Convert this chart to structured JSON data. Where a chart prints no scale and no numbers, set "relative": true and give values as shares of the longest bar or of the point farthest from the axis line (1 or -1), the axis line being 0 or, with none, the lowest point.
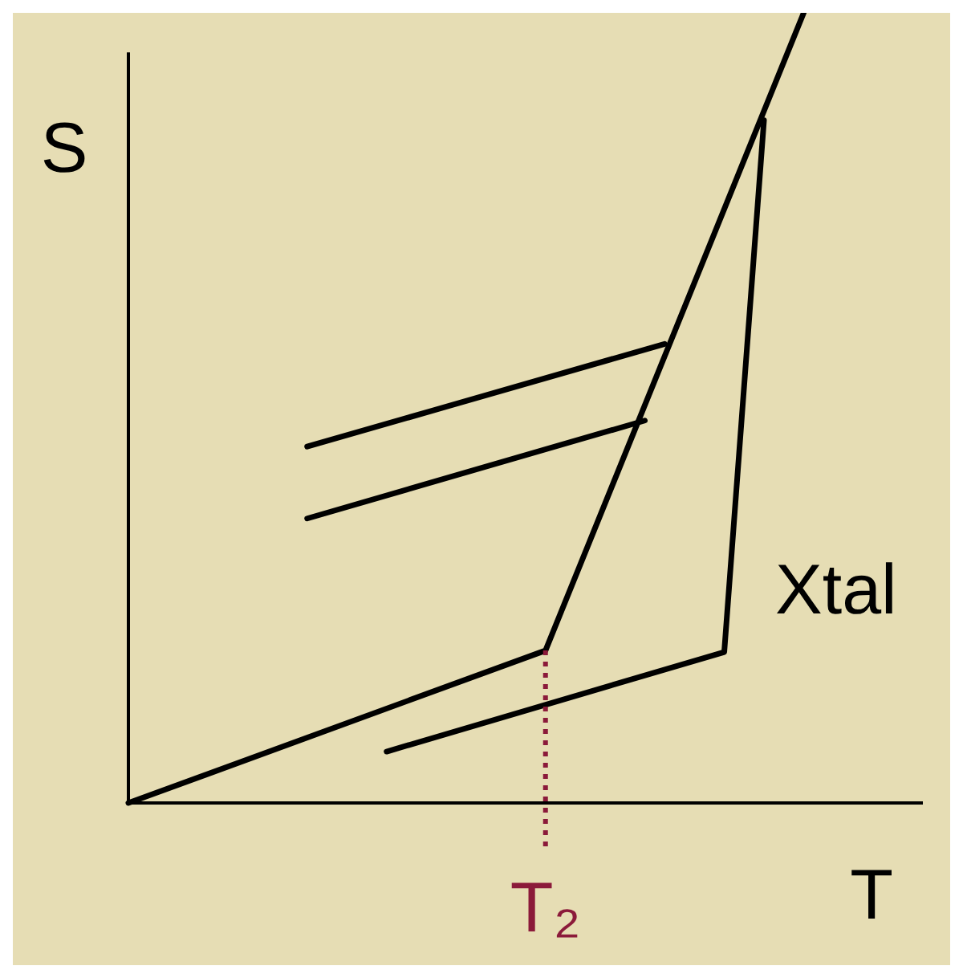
{
  "chart_data": {
    "type": "line",
    "relative": true,
    "xlabel": "T",
    "ylabel": "S",
    "annotations": [
      "Xtal",
      "T₂"
    ],
    "marker": "none",
    "categories": [
      null,
      null,
      null,
      null,
      null,
      null,
      null,
      null,
      null,
      null,
      null,
      null,
      null,
      null,
      null,
      null,
      null,
      null,
      null,
      null,
      null,
      null,
      null,
      null,
      null,
      null,
      null,
      null,
      null,
      null,
      null,
      null,
      null,
      null,
      null,
      null,
      null,
      null,
      null,
      null,
      null
    ],
    "series": [
      {
        "color": "#000000",
        "values": [
          0,
          null,
          null,
          null,
          null,
          null,
          null,
          null,
          null,
          null,
          null,
          null,
          null,
          null,
          null,
          null,
          null,
          null,
          null,
          null,
          null,
          0.193,
          null,
          null,
          null,
          null,
          null,
          null,
          null,
          null,
          null,
          null,
          null,
          null,
          1.0,
          null,
          null,
          null,
          null,
          null,
          null
        ]
      },
      {
        "color": "#000000",
        "values": [
          null,
          null,
          null,
          null,
          null,
          null,
          null,
          null,
          null,
          null,
          null,
          null,
          null,
          0.065,
          null,
          null,
          null,
          null,
          null,
          null,
          null,
          null,
          null,
          null,
          null,
          null,
          null,
          null,
          null,
          null,
          0.191,
          null,
          0.864,
          null,
          null,
          null,
          null,
          null,
          null,
          null,
          null
        ]
      },
      {
        "color": "#000000",
        "values": [
          null,
          null,
          null,
          null,
          null,
          null,
          null,
          null,
          null,
          0.451,
          null,
          null,
          null,
          null,
          null,
          null,
          null,
          null,
          null,
          null,
          null,
          null,
          null,
          null,
          null,
          null,
          null,
          0.581,
          null,
          null,
          null,
          null,
          null,
          null,
          null,
          null,
          null,
          null,
          null,
          null,
          null
        ]
      },
      {
        "color": "#000000",
        "values": [
          null,
          null,
          null,
          null,
          null,
          null,
          null,
          null,
          null,
          0.36,
          null,
          null,
          null,
          null,
          null,
          null,
          null,
          null,
          null,
          null,
          null,
          null,
          null,
          null,
          null,
          null,
          0.484,
          null,
          null,
          null,
          null,
          null,
          null,
          null,
          null,
          null,
          null,
          null,
          null,
          null,
          null
        ]
      }
    ]
  }
}
